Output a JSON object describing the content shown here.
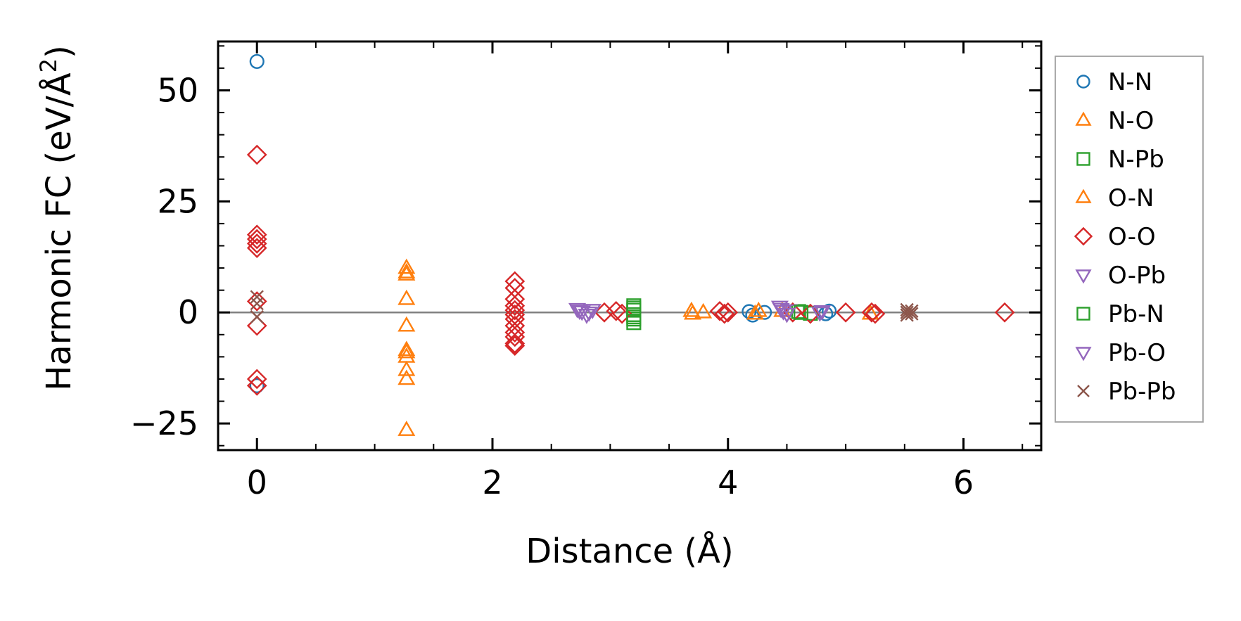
{
  "chart_data": {
    "type": "scatter",
    "xlabel": "Distance (Å)",
    "ylabel_main": "Harmonic FC (eV/Å",
    "ylabel_sup": "2",
    "ylabel_close": ")",
    "xlim": [
      -0.33,
      6.66
    ],
    "ylim": [
      -31,
      61
    ],
    "xticks": [
      0,
      2,
      4,
      6
    ],
    "yticks": [
      -25,
      0,
      25,
      50
    ],
    "xtick_labels": [
      "0",
      "2",
      "4",
      "6"
    ],
    "ytick_labels": [
      "−25",
      "0",
      "25",
      "50"
    ],
    "x_minor_step": 0.5,
    "y_minor_step": 5,
    "zero_line": true,
    "legend_position": "right-outside",
    "series": [
      {
        "name": "N-N",
        "marker": "circle",
        "color": "#1f77b4",
        "points": [
          [
            0,
            56.5
          ],
          [
            0,
            -16.5
          ],
          [
            4.18,
            0.2
          ],
          [
            4.21,
            -0.6
          ],
          [
            4.31,
            0.0
          ],
          [
            4.83,
            -0.3
          ],
          [
            4.86,
            0.3
          ]
        ]
      },
      {
        "name": "N-O",
        "marker": "triangle-up",
        "color": "#ff7f0e",
        "points": [
          [
            1.27,
            10
          ],
          [
            1.27,
            8.5
          ],
          [
            1.27,
            3
          ],
          [
            1.27,
            -3
          ],
          [
            1.27,
            -8.5
          ],
          [
            1.27,
            -10
          ],
          [
            1.27,
            -13
          ],
          [
            1.27,
            -15
          ],
          [
            1.27,
            -26.5
          ],
          [
            3.69,
            0.3
          ],
          [
            3.79,
            0.0
          ],
          [
            4.23,
            -0.3
          ],
          [
            4.26,
            0.3
          ]
        ]
      },
      {
        "name": "N-Pb",
        "marker": "square",
        "color": "#2ca02c",
        "points": [
          [
            3.2,
            1.5
          ],
          [
            3.2,
            0.5
          ],
          [
            3.2,
            -0.5
          ],
          [
            3.2,
            -1.5
          ],
          [
            3.2,
            -2.3
          ],
          [
            4.6,
            0.2
          ],
          [
            4.7,
            -0.2
          ]
        ]
      },
      {
        "name": "O-N",
        "marker": "triangle-up",
        "color": "#ff7f0e",
        "points": [
          [
            1.27,
            9
          ],
          [
            1.27,
            -9
          ],
          [
            3.7,
            -0.3
          ],
          [
            4.46,
            0.3
          ],
          [
            5.21,
            -0.3
          ]
        ]
      },
      {
        "name": "O-O",
        "marker": "diamond",
        "color": "#d62728",
        "points": [
          [
            0,
            35.5
          ],
          [
            0,
            17.5
          ],
          [
            0,
            16.5
          ],
          [
            0,
            15.5
          ],
          [
            0,
            14.5
          ],
          [
            0,
            2.5
          ],
          [
            0,
            -3
          ],
          [
            0,
            -15
          ],
          [
            0,
            -16.5
          ],
          [
            2.19,
            7
          ],
          [
            2.19,
            5.5
          ],
          [
            2.19,
            3
          ],
          [
            2.19,
            1.5
          ],
          [
            2.19,
            0.5
          ],
          [
            2.19,
            -0.5
          ],
          [
            2.19,
            -1.5
          ],
          [
            2.19,
            -3
          ],
          [
            2.19,
            -4.5
          ],
          [
            2.19,
            -5.5
          ],
          [
            2.19,
            -7
          ],
          [
            2.19,
            -7.5
          ],
          [
            2.95,
            0.0
          ],
          [
            3.05,
            0.3
          ],
          [
            3.1,
            -0.3
          ],
          [
            3.93,
            0.3
          ],
          [
            3.97,
            -0.3
          ],
          [
            4.0,
            0.0
          ],
          [
            4.55,
            0.0
          ],
          [
            4.7,
            -0.3
          ],
          [
            5.0,
            0.0
          ],
          [
            5.22,
            0.0
          ],
          [
            5.25,
            -0.3
          ],
          [
            6.35,
            0.0
          ]
        ]
      },
      {
        "name": "O-Pb",
        "marker": "triangle-down",
        "color": "#9467bd",
        "points": [
          [
            2.72,
            0.8
          ],
          [
            2.76,
            0.2
          ],
          [
            2.8,
            -0.5
          ],
          [
            2.85,
            0.6
          ],
          [
            4.44,
            1.3
          ],
          [
            4.47,
            0.3
          ],
          [
            4.52,
            0.5
          ],
          [
            4.78,
            0.0
          ]
        ]
      },
      {
        "name": "Pb-N",
        "marker": "square",
        "color": "#2ca02c",
        "points": [
          [
            3.2,
            1
          ],
          [
            3.2,
            -1
          ],
          [
            4.62,
            0.0
          ]
        ]
      },
      {
        "name": "Pb-O",
        "marker": "triangle-down",
        "color": "#9467bd",
        "points": [
          [
            2.74,
            0.4
          ],
          [
            2.82,
            0.0
          ],
          [
            4.45,
            0.8
          ],
          [
            4.5,
            -0.3
          ],
          [
            4.8,
            0.3
          ]
        ]
      },
      {
        "name": "Pb-Pb",
        "marker": "x",
        "color": "#8c564b",
        "points": [
          [
            0,
            3.5
          ],
          [
            0,
            2
          ],
          [
            0,
            -1
          ],
          [
            5.52,
            0.6
          ],
          [
            5.52,
            0.0
          ],
          [
            5.52,
            -0.6
          ],
          [
            5.56,
            0.3
          ],
          [
            5.56,
            -0.3
          ]
        ]
      }
    ]
  }
}
